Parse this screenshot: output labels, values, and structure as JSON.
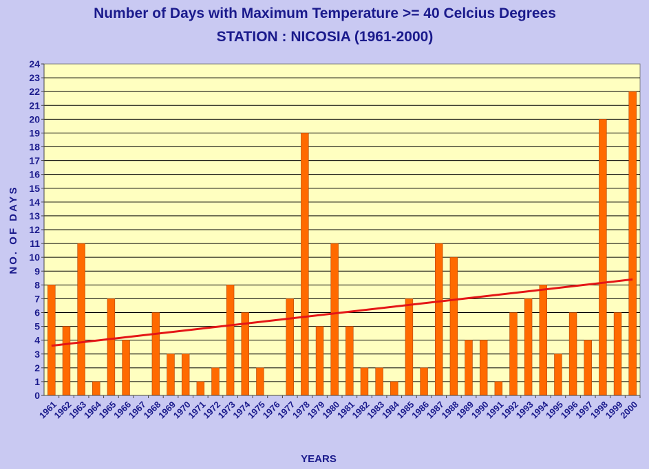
{
  "chart_data": {
    "type": "bar",
    "title": "Number of Days with Maximum Temperature >= 40 Celcius Degrees",
    "subtitle": "STATION : NICOSIA (1961-2000)",
    "xlabel": "YEARS",
    "ylabel": "NO. OF DAYS",
    "ylim": [
      0,
      24
    ],
    "yticks": [
      "0",
      "1",
      "2",
      "3",
      "4",
      "5",
      "6",
      "7",
      "8",
      "9",
      "10",
      "11",
      "12",
      "13",
      "14",
      "15",
      "16",
      "17",
      "18",
      "19",
      "20",
      "21",
      "22",
      "23",
      "24"
    ],
    "grid": true,
    "legend": "none",
    "categories": [
      "1961",
      "1962",
      "1963",
      "1964",
      "1965",
      "1966",
      "1967",
      "1968",
      "1969",
      "1970",
      "1971",
      "1972",
      "1973",
      "1974",
      "1975",
      "1976",
      "1977",
      "1978",
      "1979",
      "1980",
      "1981",
      "1982",
      "1983",
      "1984",
      "1985",
      "1986",
      "1987",
      "1988",
      "1989",
      "1990",
      "1991",
      "1992",
      "1993",
      "1994",
      "1995",
      "1996",
      "1997",
      "1998",
      "1999",
      "2000"
    ],
    "values": [
      8,
      5,
      11,
      1,
      7,
      4,
      0,
      6,
      3,
      3,
      1,
      2,
      8,
      6,
      2,
      0,
      7,
      19,
      5,
      11,
      5,
      2,
      2,
      1,
      7,
      2,
      11,
      10,
      4,
      4,
      1,
      6,
      7,
      8,
      3,
      6,
      4,
      20,
      6,
      22
    ],
    "trendline": {
      "type": "linear",
      "start": 3.6,
      "end": 8.4
    },
    "colors": {
      "bar": "#ff6a00",
      "bar_edge": "#b34400",
      "trend": "#e41616",
      "plot_bg": "#ffffc0",
      "page_bg": "#c9c9f2",
      "text": "#1a1a8c",
      "grid": "#000000"
    }
  }
}
